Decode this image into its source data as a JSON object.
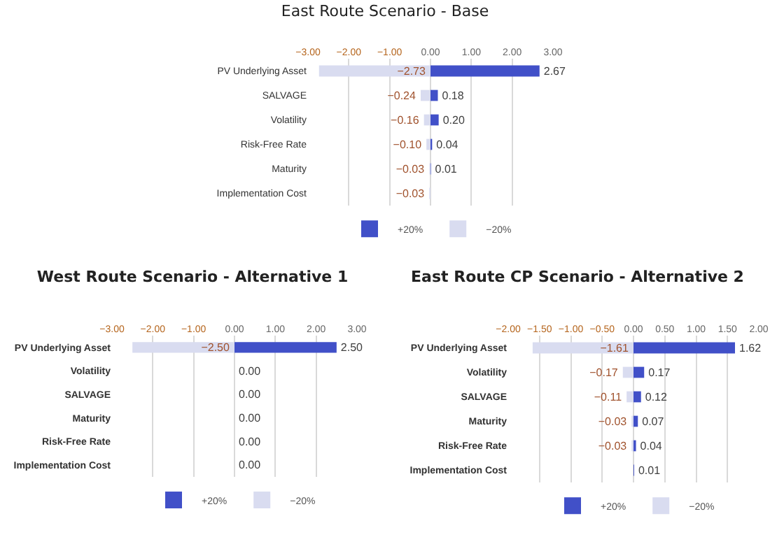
{
  "chart_data": [
    {
      "type": "bar",
      "orientation": "horizontal",
      "stacked": true,
      "title": "East Route Scenario - Base",
      "categories": [
        "PV Underlying Asset",
        "SALVAGE",
        "Volatility",
        "Risk-Free Rate",
        "Maturity",
        "Implementation Cost"
      ],
      "series": [
        {
          "name": "+20%",
          "color": "#4150c8",
          "values": [
            2.67,
            0.18,
            0.2,
            0.04,
            0.01,
            null
          ],
          "value_labels": [
            "2.67",
            "0.18",
            "0.20",
            "0.04",
            "0.01",
            null
          ]
        },
        {
          "name": "−20%",
          "color": "#d9dcf0",
          "values": [
            -2.73,
            -0.24,
            -0.16,
            -0.1,
            -0.03,
            -0.03
          ],
          "value_labels": [
            "−2.73",
            "−0.24",
            "−0.16",
            "−0.10",
            "−0.03",
            "−0.03"
          ]
        }
      ],
      "xlim": [
        -3,
        3
      ],
      "xticks": [
        {
          "value": -3,
          "label": "−3.00"
        },
        {
          "value": -2,
          "label": "−2.00"
        },
        {
          "value": -1,
          "label": "−1.00"
        },
        {
          "value": 0,
          "label": "0.00"
        },
        {
          "value": 1,
          "label": "1.00"
        },
        {
          "value": 2,
          "label": "2.00"
        },
        {
          "value": 3,
          "label": "3.00"
        }
      ],
      "grid": "x",
      "legend": "bottom"
    },
    {
      "type": "bar",
      "orientation": "horizontal",
      "stacked": true,
      "title": "West Route Scenario - Alternative 1",
      "categories": [
        "PV Underlying Asset",
        "Volatility",
        "SALVAGE",
        "Maturity",
        "Risk-Free Rate",
        "Implementation Cost"
      ],
      "series": [
        {
          "name": "+20%",
          "color": "#4150c8",
          "values": [
            2.5,
            0,
            0,
            0,
            0,
            0
          ],
          "value_labels": [
            "2.50",
            "0.00",
            "0.00",
            "0.00",
            "0.00",
            "0.00"
          ]
        },
        {
          "name": "−20%",
          "color": "#d9dcf0",
          "values": [
            -2.5,
            null,
            null,
            null,
            null,
            null
          ],
          "value_labels": [
            "−2.50",
            null,
            null,
            null,
            null,
            null
          ]
        }
      ],
      "xlim": [
        -3,
        3
      ],
      "xticks": [
        {
          "value": -3,
          "label": "−3.00"
        },
        {
          "value": -2,
          "label": "−2.00"
        },
        {
          "value": -1,
          "label": "−1.00"
        },
        {
          "value": 0,
          "label": "0.00"
        },
        {
          "value": 1,
          "label": "1.00"
        },
        {
          "value": 2,
          "label": "2.00"
        },
        {
          "value": 3,
          "label": "3.00"
        }
      ],
      "grid": "x",
      "legend": "bottom"
    },
    {
      "type": "bar",
      "orientation": "horizontal",
      "stacked": true,
      "title": "East Route CP Scenario - Alternative 2",
      "categories": [
        "PV Underlying Asset",
        "Volatility",
        "SALVAGE",
        "Maturity",
        "Risk-Free Rate",
        "Implementation Cost"
      ],
      "series": [
        {
          "name": "+20%",
          "color": "#4150c8",
          "values": [
            1.62,
            0.17,
            0.12,
            0.07,
            0.04,
            0.01
          ],
          "value_labels": [
            "1.62",
            "0.17",
            "0.12",
            "0.07",
            "0.04",
            "0.01"
          ]
        },
        {
          "name": "−20%",
          "color": "#d9dcf0",
          "values": [
            -1.61,
            -0.17,
            -0.11,
            -0.03,
            -0.03,
            null
          ],
          "value_labels": [
            "−1.61",
            "−0.17",
            "−0.11",
            "−0.03",
            "−0.03",
            null
          ]
        }
      ],
      "xlim": [
        -2,
        2
      ],
      "xticks": [
        {
          "value": -2,
          "label": "−2.00"
        },
        {
          "value": -1.5,
          "label": "−1.50"
        },
        {
          "value": -1,
          "label": "−1.00"
        },
        {
          "value": -0.5,
          "label": "−0.50"
        },
        {
          "value": 0,
          "label": "0.00"
        },
        {
          "value": 0.5,
          "label": "0.50"
        },
        {
          "value": 1,
          "label": "1.00"
        },
        {
          "value": 1.5,
          "label": "1.50"
        },
        {
          "value": 2,
          "label": "2.00"
        }
      ],
      "grid": "x",
      "legend": "bottom"
    }
  ]
}
